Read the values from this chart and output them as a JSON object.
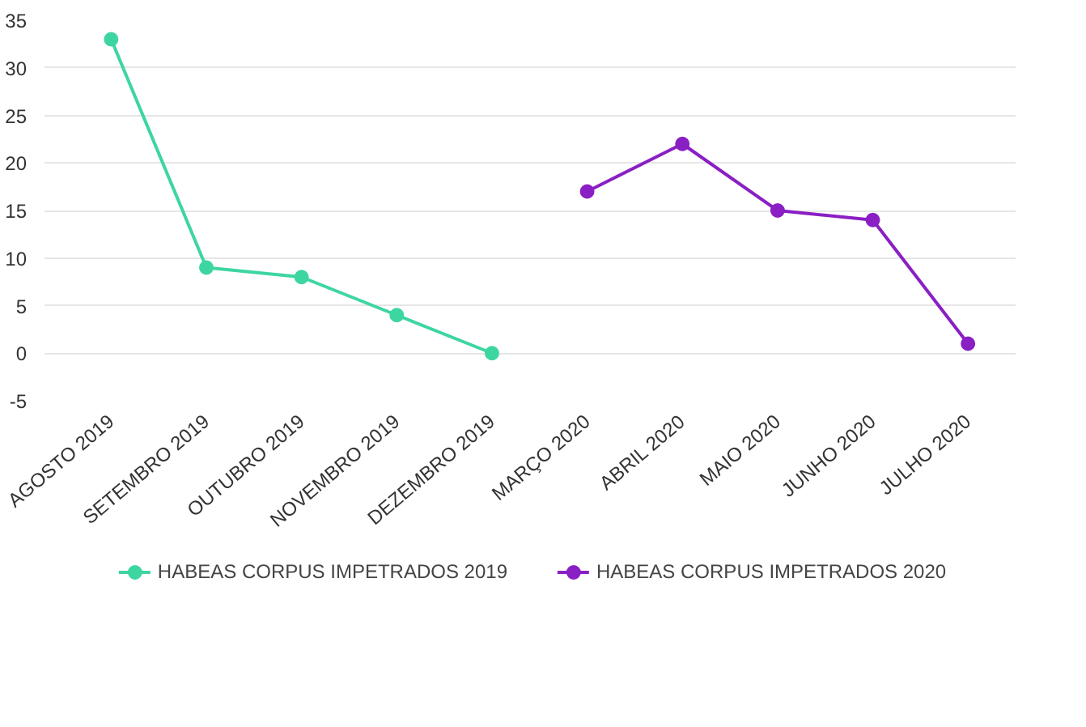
{
  "chart_data": {
    "type": "line",
    "categories": [
      "AGOSTO 2019",
      "SETEMBRO 2019",
      "OUTUBRO 2019",
      "NOVEMBRO 2019",
      "DEZEMBRO 2019",
      "MARÇO 2020",
      "ABRIL 2020",
      "MAIO 2020",
      "JUNHO 2020",
      "JULHO 2020"
    ],
    "series": [
      {
        "name": "HABEAS CORPUS IMPETRADOS 2019",
        "color": "#3dd6a0",
        "values": [
          33,
          9,
          8,
          4,
          0,
          null,
          null,
          null,
          null,
          null
        ]
      },
      {
        "name": "HABEAS CORPUS IMPETRADOS 2020",
        "color": "#8a1fc4",
        "values": [
          null,
          null,
          null,
          null,
          null,
          17,
          22,
          15,
          14,
          1
        ]
      }
    ],
    "ylim": [
      -5,
      35
    ],
    "yticks": [
      -5,
      0,
      5,
      10,
      15,
      20,
      25,
      30,
      35
    ],
    "grid": "y",
    "legend": "bottom",
    "marker": "circle",
    "line_style": "solid"
  }
}
